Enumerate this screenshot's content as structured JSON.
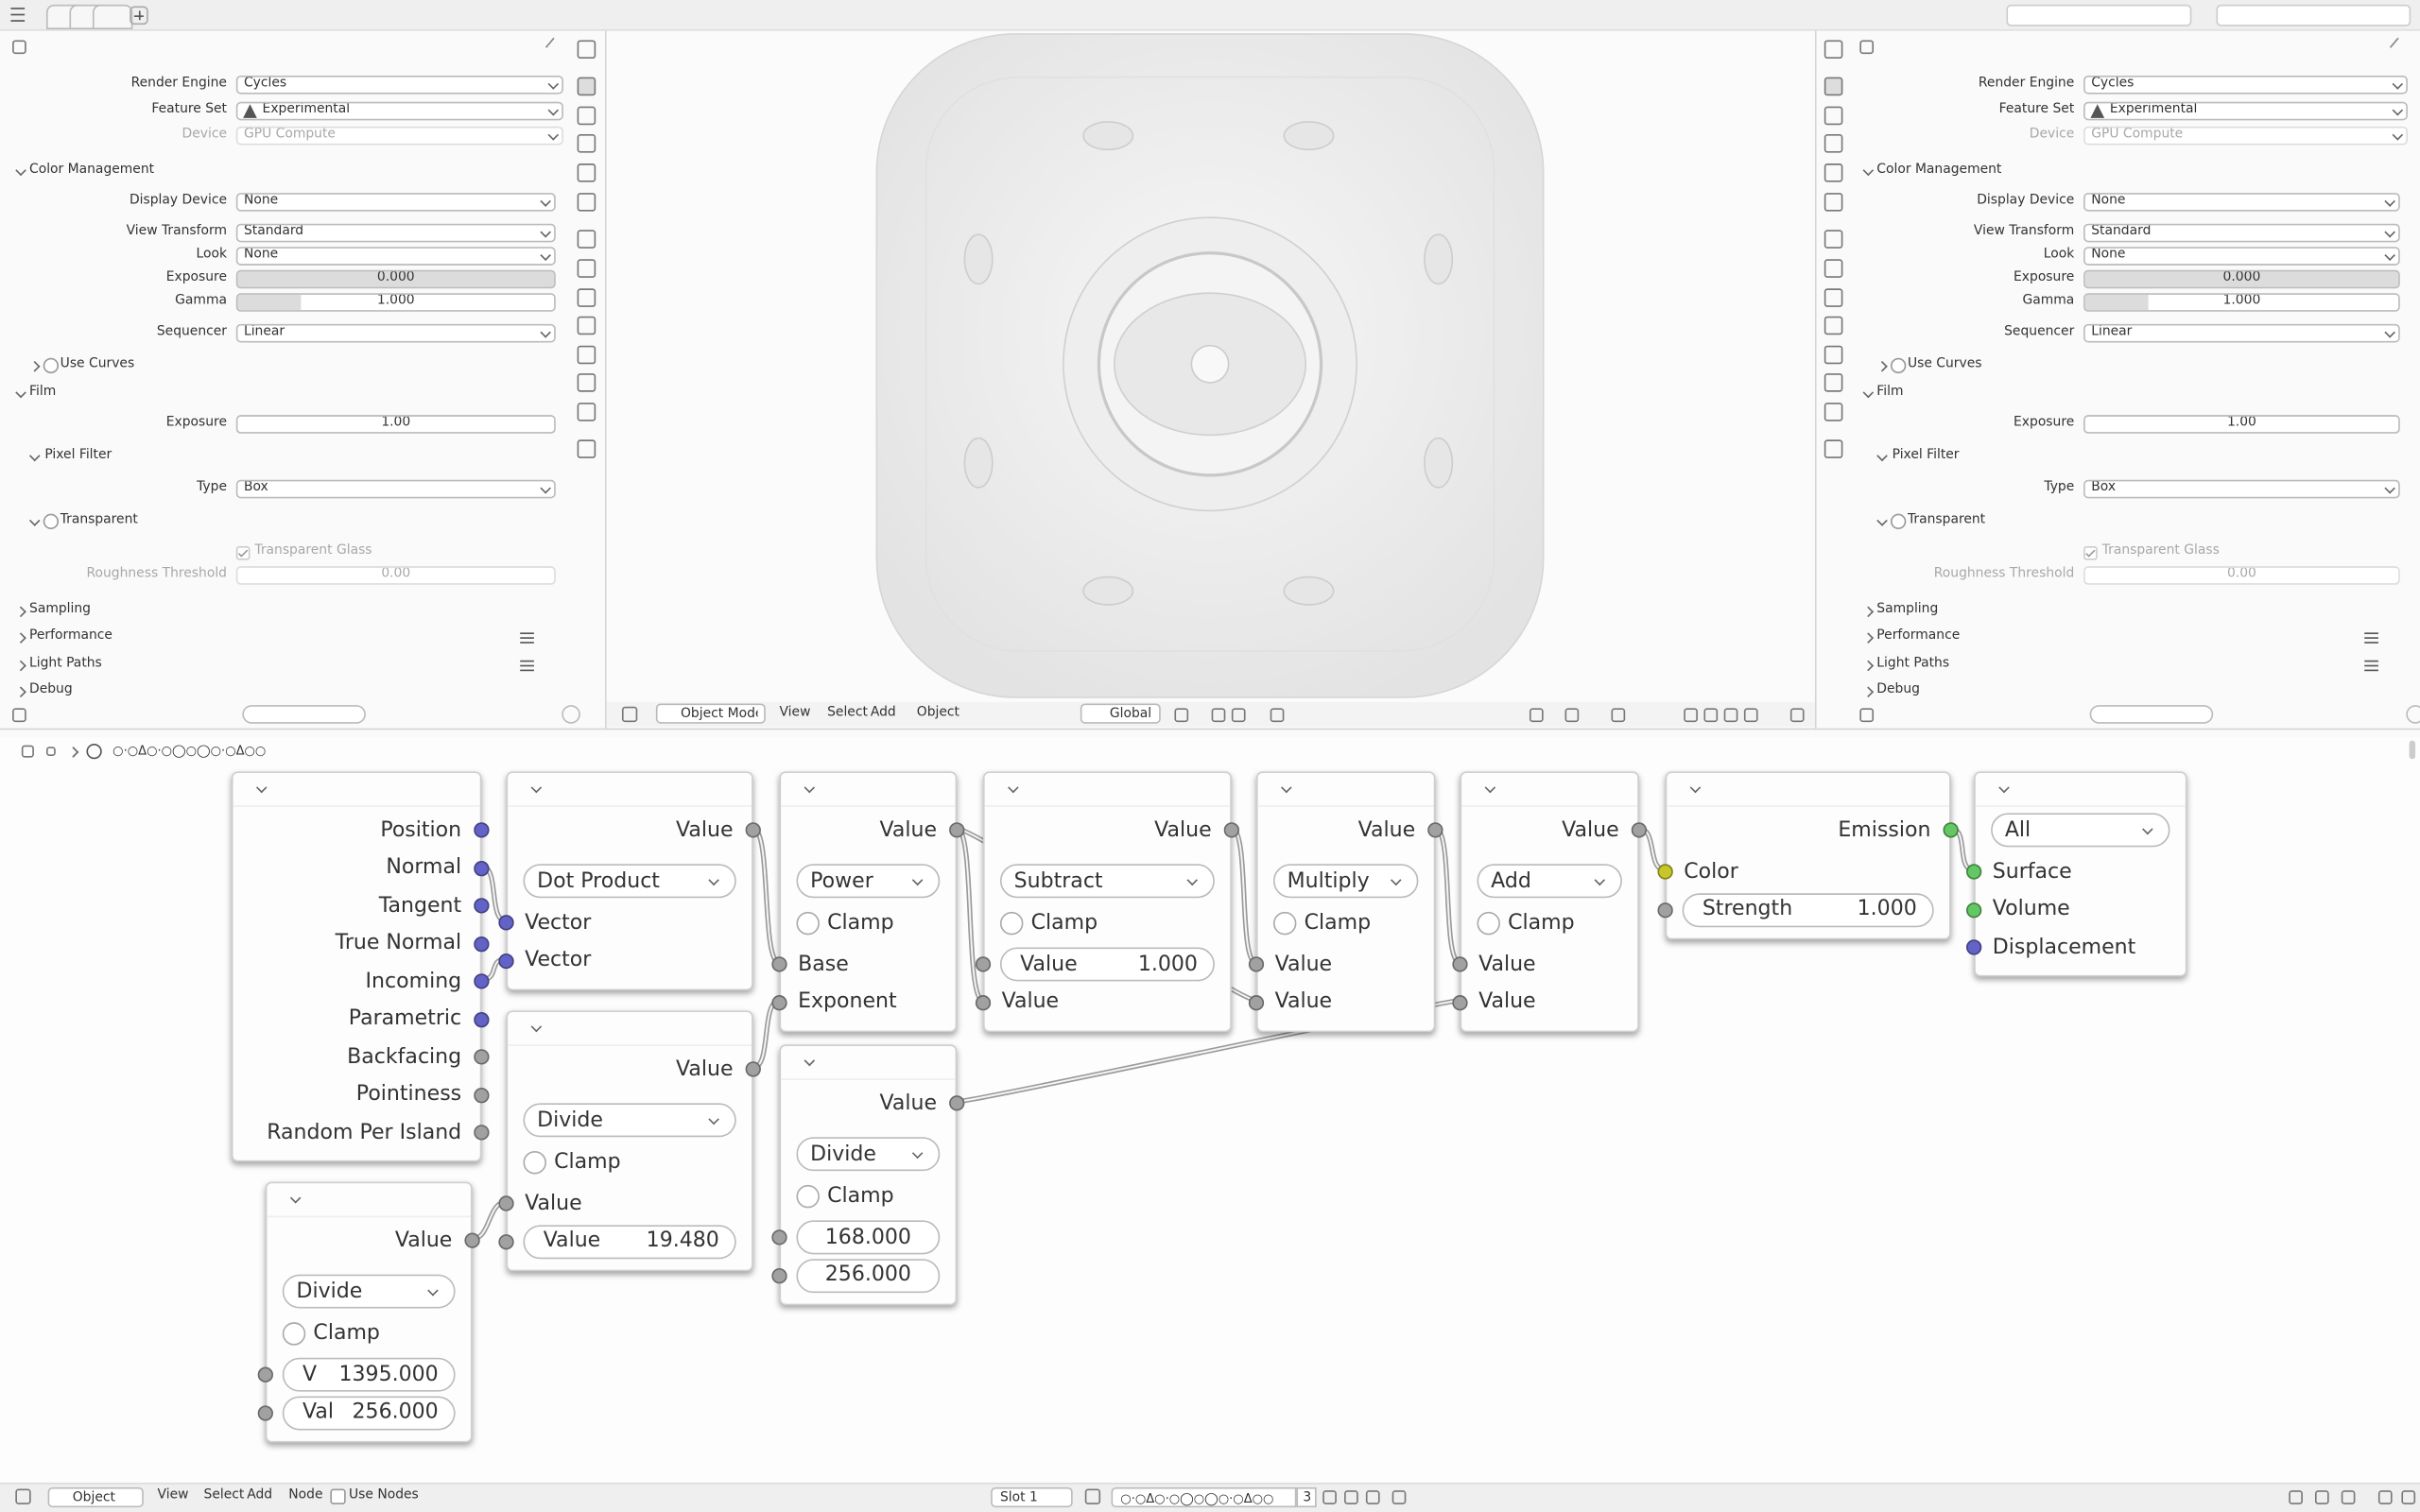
{
  "properties_panels": [
    {
      "rows": [
        {
          "kind": "dropdown",
          "label": "Render Engine",
          "value": "Cycles"
        },
        {
          "kind": "dropdown",
          "label": "Feature Set",
          "value": "Experimental",
          "icon": "warning"
        },
        {
          "kind": "dropdown",
          "label": "Device",
          "value": "GPU Compute",
          "disabled": true
        },
        {
          "kind": "section",
          "label": "Color Management",
          "open": true
        },
        {
          "kind": "dropdown",
          "label": "Display Device",
          "value": "None"
        },
        {
          "kind": "dropdown",
          "label": "View Transform",
          "value": "Standard"
        },
        {
          "kind": "dropdown",
          "label": "Look",
          "value": "None"
        },
        {
          "kind": "slider",
          "label": "Exposure",
          "value": "0.000"
        },
        {
          "kind": "slider",
          "label": "Gamma",
          "value": "1.000"
        },
        {
          "kind": "dropdown",
          "label": "Sequencer",
          "value": "Linear"
        },
        {
          "kind": "subsection",
          "label": "Use Curves",
          "checkbox": false,
          "open": false
        },
        {
          "kind": "section",
          "label": "Film",
          "open": true
        },
        {
          "kind": "field",
          "label": "Exposure",
          "value": "1.00"
        },
        {
          "kind": "subsection",
          "label": "Pixel Filter",
          "open": true
        },
        {
          "kind": "dropdown",
          "label": "Type",
          "value": "Box"
        },
        {
          "kind": "subsection",
          "label": "Transparent",
          "checkbox": false,
          "open": true
        },
        {
          "kind": "check",
          "label": "Transparent Glass",
          "checked": true,
          "disabled": true
        },
        {
          "kind": "field",
          "label": "Roughness Threshold",
          "value": "0.00",
          "disabled": true
        },
        {
          "kind": "section",
          "label": "Sampling",
          "open": false
        },
        {
          "kind": "section",
          "label": "Performance",
          "open": false,
          "list_icon": true
        },
        {
          "kind": "section",
          "label": "Light Paths",
          "open": false,
          "list_icon": true
        },
        {
          "kind": "section",
          "label": "Debug",
          "open": false
        }
      ]
    },
    {
      "rows": [
        {
          "kind": "dropdown",
          "label": "Render Engine",
          "value": "Cycles"
        },
        {
          "kind": "dropdown",
          "label": "Feature Set",
          "value": "Experimental",
          "icon": "warning"
        },
        {
          "kind": "dropdown",
          "label": "Device",
          "value": "GPU Compute",
          "disabled": true
        },
        {
          "kind": "section",
          "label": "Color Management",
          "open": true
        },
        {
          "kind": "dropdown",
          "label": "Display Device",
          "value": "None"
        },
        {
          "kind": "dropdown",
          "label": "View Transform",
          "value": "Standard"
        },
        {
          "kind": "dropdown",
          "label": "Look",
          "value": "None"
        },
        {
          "kind": "slider",
          "label": "Exposure",
          "value": "0.000"
        },
        {
          "kind": "slider",
          "label": "Gamma",
          "value": "1.000"
        },
        {
          "kind": "dropdown",
          "label": "Sequencer",
          "value": "Linear"
        },
        {
          "kind": "subsection",
          "label": "Use Curves",
          "checkbox": false,
          "open": false
        },
        {
          "kind": "section",
          "label": "Film",
          "open": true
        },
        {
          "kind": "field",
          "label": "Exposure",
          "value": "1.00"
        },
        {
          "kind": "subsection",
          "label": "Pixel Filter",
          "open": true
        },
        {
          "kind": "dropdown",
          "label": "Type",
          "value": "Box"
        },
        {
          "kind": "subsection",
          "label": "Transparent",
          "checkbox": false,
          "open": true
        },
        {
          "kind": "check",
          "label": "Transparent Glass",
          "checked": true,
          "disabled": true
        },
        {
          "kind": "field",
          "label": "Roughness Threshold",
          "value": "0.00",
          "disabled": true
        },
        {
          "kind": "section",
          "label": "Sampling",
          "open": false
        },
        {
          "kind": "section",
          "label": "Performance",
          "open": false,
          "list_icon": true
        },
        {
          "kind": "section",
          "label": "Light Paths",
          "open": false,
          "list_icon": true
        },
        {
          "kind": "section",
          "label": "Debug",
          "open": false
        }
      ]
    }
  ],
  "viewport_header": {
    "mode": "Object Mode",
    "menus": [
      "View",
      "Select",
      "Add",
      "Object"
    ],
    "orientation": "Global"
  },
  "node_editor": {
    "breadcrumb": "○·○Δ○·○◯○◯○·○Δ○○",
    "nodes": [
      {
        "items": [
          {
            "kind": "out",
            "label": "Position",
            "socket": "#6363c7"
          },
          {
            "kind": "out",
            "label": "Normal",
            "socket": "#6363c7"
          },
          {
            "kind": "out",
            "label": "Tangent",
            "socket": "#6363c7"
          },
          {
            "kind": "out",
            "label": "True Normal",
            "socket": "#6363c7"
          },
          {
            "kind": "out",
            "label": "Incoming",
            "socket": "#6363c7"
          },
          {
            "kind": "out",
            "label": "Parametric",
            "socket": "#6363c7"
          },
          {
            "kind": "out",
            "label": "Backfacing",
            "socket": "#a1a1a1"
          },
          {
            "kind": "out",
            "label": "Pointiness",
            "socket": "#a1a1a1"
          },
          {
            "kind": "out",
            "label": "Random Per Island",
            "socket": "#a1a1a1"
          }
        ]
      },
      {
        "items": [
          {
            "kind": "out",
            "label": "Value",
            "socket": "#a1a1a1"
          },
          {
            "kind": "dropdown",
            "label": "Dot Product"
          },
          {
            "kind": "in",
            "label": "Vector",
            "socket": "#6363c7"
          },
          {
            "kind": "in",
            "label": "Vector",
            "socket": "#6363c7"
          }
        ]
      },
      {
        "items": [
          {
            "kind": "out",
            "label": "Value",
            "socket": "#a1a1a1"
          },
          {
            "kind": "dropdown",
            "label": "Divide"
          },
          {
            "kind": "check",
            "label": "Clamp"
          },
          {
            "kind": "in",
            "label": "Value",
            "socket": "#a1a1a1"
          },
          {
            "kind": "field",
            "label": "Value",
            "value": "19.480",
            "socket": "#a1a1a1"
          }
        ]
      },
      {
        "items": [
          {
            "kind": "out",
            "label": "Value",
            "socket": "#a1a1a1"
          },
          {
            "kind": "dropdown",
            "label": "Divide"
          },
          {
            "kind": "check",
            "label": "Clamp"
          },
          {
            "kind": "field",
            "label": "V",
            "value": "1395.000",
            "socket": "#a1a1a1"
          },
          {
            "kind": "field",
            "label": "Val",
            "value": "256.000",
            "socket": "#a1a1a1"
          }
        ]
      },
      {
        "items": [
          {
            "kind": "out",
            "label": "Value",
            "socket": "#a1a1a1"
          },
          {
            "kind": "dropdown",
            "label": "Power"
          },
          {
            "kind": "check",
            "label": "Clamp"
          },
          {
            "kind": "in",
            "label": "Base",
            "socket": "#a1a1a1"
          },
          {
            "kind": "in",
            "label": "Exponent",
            "socket": "#a1a1a1"
          }
        ]
      },
      {
        "items": [
          {
            "kind": "out",
            "label": "Value",
            "socket": "#a1a1a1"
          },
          {
            "kind": "dropdown",
            "label": "Divide"
          },
          {
            "kind": "check",
            "label": "Clamp"
          },
          {
            "kind": "field",
            "value": "168.000",
            "socket": "#a1a1a1"
          },
          {
            "kind": "field",
            "value": "256.000",
            "socket": "#a1a1a1"
          }
        ]
      },
      {
        "items": [
          {
            "kind": "out",
            "label": "Value",
            "socket": "#a1a1a1"
          },
          {
            "kind": "dropdown",
            "label": "Subtract"
          },
          {
            "kind": "check",
            "label": "Clamp"
          },
          {
            "kind": "field",
            "label": "Value",
            "value": "1.000",
            "socket": "#a1a1a1"
          },
          {
            "kind": "in",
            "label": "Value",
            "socket": "#a1a1a1"
          }
        ]
      },
      {
        "items": [
          {
            "kind": "out",
            "label": "Value",
            "socket": "#a1a1a1"
          },
          {
            "kind": "dropdown",
            "label": "Multiply"
          },
          {
            "kind": "check",
            "label": "Clamp"
          },
          {
            "kind": "in",
            "label": "Value",
            "socket": "#a1a1a1"
          },
          {
            "kind": "in",
            "label": "Value",
            "socket": "#a1a1a1"
          }
        ]
      },
      {
        "items": [
          {
            "kind": "out",
            "label": "Value",
            "socket": "#a1a1a1"
          },
          {
            "kind": "dropdown",
            "label": "Add"
          },
          {
            "kind": "check",
            "label": "Clamp"
          },
          {
            "kind": "in",
            "label": "Value",
            "socket": "#a1a1a1"
          },
          {
            "kind": "in",
            "label": "Value",
            "socket": "#a1a1a1"
          }
        ]
      },
      {
        "items": [
          {
            "kind": "out",
            "label": "Emission",
            "socket": "#63c763"
          },
          {
            "kind": "in",
            "label": "Color",
            "socket": "#c7c729"
          },
          {
            "kind": "field",
            "label": "Strength",
            "value": "1.000",
            "socket": "#a1a1a1"
          }
        ]
      },
      {
        "items": [
          {
            "kind": "dropdown",
            "label": "All"
          },
          {
            "kind": "in",
            "label": "Surface",
            "socket": "#63c763"
          },
          {
            "kind": "in",
            "label": "Volume",
            "socket": "#63c763"
          },
          {
            "kind": "in",
            "label": "Displacement",
            "socket": "#6363c7"
          }
        ]
      }
    ]
  },
  "node_header": {
    "editor": "Object",
    "menus": [
      "View",
      "Select",
      "Add",
      "Node"
    ],
    "use_nodes": "Use Nodes",
    "slot": "Slot 1",
    "material": "○·○Δ○·○◯○◯○·○Δ○○",
    "users": "3"
  }
}
